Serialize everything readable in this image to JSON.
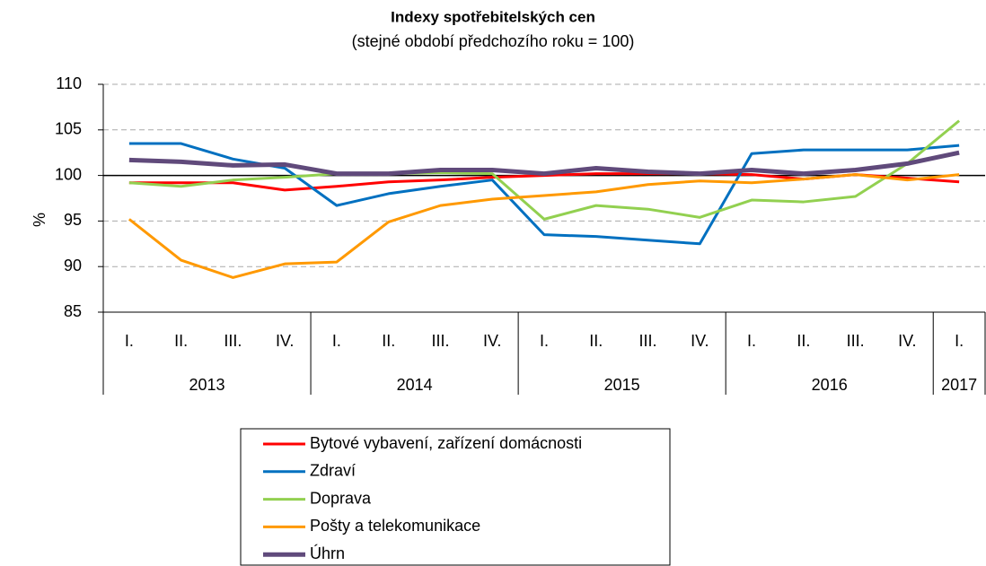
{
  "chart_data": {
    "type": "line",
    "title": "Indexy spotřebitelských  cen",
    "subtitle": "(stejné období předchozího roku = 100)",
    "y_label": "%",
    "categories": [
      "I.",
      "II.",
      "III.",
      "IV.",
      "I.",
      "II.",
      "III.",
      "IV.",
      "I.",
      "II.",
      "III.",
      "IV.",
      "I.",
      "II.",
      "III.",
      "IV.",
      "I."
    ],
    "category_groups": [
      {
        "label": "2013",
        "size": 4
      },
      {
        "label": "2014",
        "size": 4
      },
      {
        "label": "2015",
        "size": 4
      },
      {
        "label": "2016",
        "size": 4
      },
      {
        "label": "2017",
        "size": 1
      }
    ],
    "ylim": [
      85,
      110
    ],
    "yticks": [
      85,
      90,
      95,
      100,
      105,
      110
    ],
    "grid": true,
    "reference_line": 100,
    "series": [
      {
        "name": "Bytové vybavení, zařízení domácnosti",
        "color": "#ff0000",
        "width": 3,
        "values": [
          99.2,
          99.2,
          99.2,
          98.4,
          98.8,
          99.3,
          99.5,
          99.8,
          100.0,
          100.2,
          100.2,
          100.2,
          100.1,
          99.6,
          100.1,
          99.7,
          99.3
        ]
      },
      {
        "name": "Zdraví",
        "color": "#0070c0",
        "width": 3,
        "values": [
          103.5,
          103.5,
          101.8,
          100.8,
          96.7,
          98.0,
          98.8,
          99.5,
          93.5,
          93.3,
          92.9,
          92.5,
          102.4,
          102.8,
          102.8,
          102.8,
          103.3
        ]
      },
      {
        "name": "Doprava",
        "color": "#92d050",
        "width": 3,
        "values": [
          99.2,
          98.8,
          99.5,
          99.8,
          100.2,
          100.2,
          100.3,
          100.2,
          95.2,
          96.7,
          96.3,
          95.4,
          97.3,
          97.1,
          97.7,
          101.3,
          106.0
        ]
      },
      {
        "name": "Pošty a telekomunikace",
        "color": "#ff9900",
        "width": 3,
        "values": [
          95.2,
          90.7,
          88.8,
          90.3,
          90.5,
          94.9,
          96.7,
          97.4,
          97.8,
          98.2,
          99.0,
          99.4,
          99.2,
          99.6,
          100.1,
          99.5,
          100.1
        ]
      },
      {
        "name": "Úhrn",
        "color": "#604a7b",
        "width": 5,
        "values": [
          101.7,
          101.5,
          101.1,
          101.2,
          100.2,
          100.2,
          100.6,
          100.6,
          100.2,
          100.8,
          100.4,
          100.2,
          100.6,
          100.2,
          100.6,
          101.3,
          102.5
        ]
      }
    ]
  }
}
